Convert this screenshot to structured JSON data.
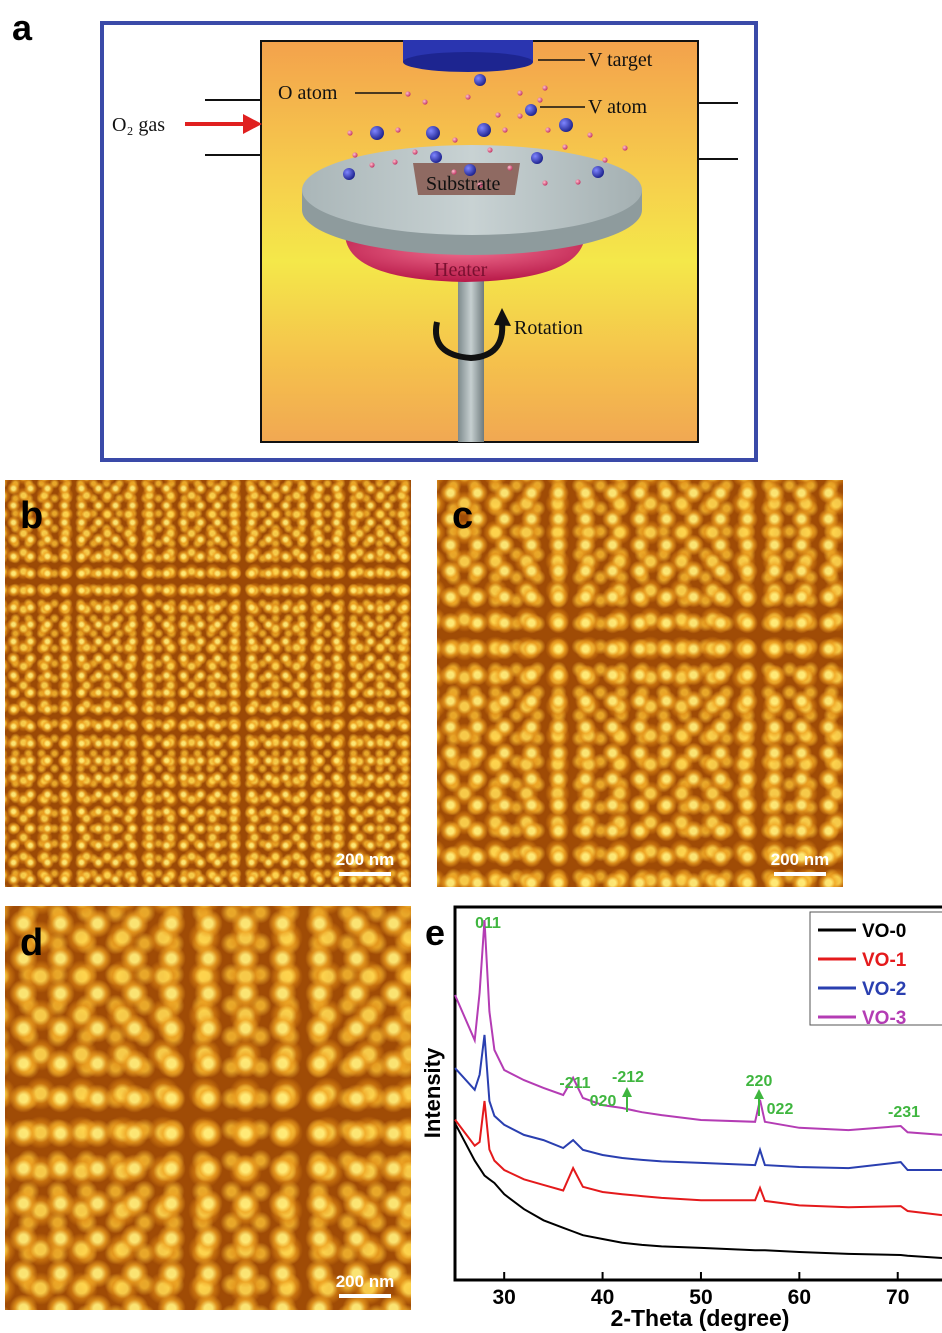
{
  "panel_labels": [
    "a",
    "b",
    "c",
    "d",
    "e"
  ],
  "diagram": {
    "v_target": "V target",
    "o_atom": "O atom",
    "v_atom": "V atom",
    "o2_gas": "O₂ gas",
    "substrate": "Substrate",
    "heater": "Heater",
    "rotation": "Rotation"
  },
  "scale_bars": [
    "200 nm",
    "200 nm",
    "200 nm"
  ],
  "chart_data": {
    "type": "line",
    "x_label": "2-Theta (degree)",
    "y_label": "Intensity",
    "x": [
      25,
      27,
      27.5,
      28,
      28.5,
      29,
      30,
      32,
      34,
      36,
      37,
      38,
      40,
      42,
      44,
      46,
      50,
      55.5,
      56,
      56.5,
      60,
      65,
      70.3,
      71,
      74.5
    ],
    "series": [
      {
        "name": "VO-0",
        "color": "#000000",
        "values": [
          42,
          32,
          30,
          28,
          27,
          26,
          23,
          19,
          16,
          14,
          13,
          12,
          11,
          10,
          9.4,
          9,
          8.6,
          8,
          8,
          8,
          7.5,
          7,
          6.7,
          6.5,
          5.9
        ]
      },
      {
        "name": "VO-1",
        "color": "#e41a1c",
        "values": [
          43,
          36,
          37,
          48,
          35,
          32,
          29.5,
          27,
          25.5,
          24,
          30,
          25,
          23.6,
          23,
          22.5,
          22,
          21.4,
          21.4,
          24.7,
          21.2,
          20,
          19.5,
          19.8,
          18.5,
          17.4
        ]
      },
      {
        "name": "VO-2",
        "color": "#2a3fb0",
        "values": [
          56.8,
          51,
          55,
          65.7,
          48,
          44,
          41.6,
          38.9,
          37.5,
          35.4,
          37.5,
          34.9,
          33.5,
          32.7,
          32.2,
          31.8,
          31.4,
          30.8,
          34.9,
          30.8,
          30.3,
          30,
          31.6,
          29.5,
          29.5
        ]
      },
      {
        "name": "VO-3",
        "color": "#b43cb4",
        "values": [
          76.4,
          64.3,
          77,
          96.5,
          72,
          61.7,
          56.3,
          53.6,
          51.5,
          49.6,
          54.2,
          48.8,
          46.9,
          46.1,
          45,
          44.2,
          42.9,
          42.4,
          48.3,
          42.4,
          40.8,
          40.2,
          41.3,
          39.6,
          38.9
        ]
      }
    ],
    "xlim": [
      25,
      74.5
    ],
    "ylim": [
      0,
      100
    ],
    "xticks": [
      30,
      40,
      50,
      60,
      70
    ],
    "annotations": [
      "011",
      "-211",
      "020",
      "-212",
      "220",
      "022",
      "-231"
    ],
    "annotation_color": "#3fb63f",
    "legend": "upper right"
  }
}
